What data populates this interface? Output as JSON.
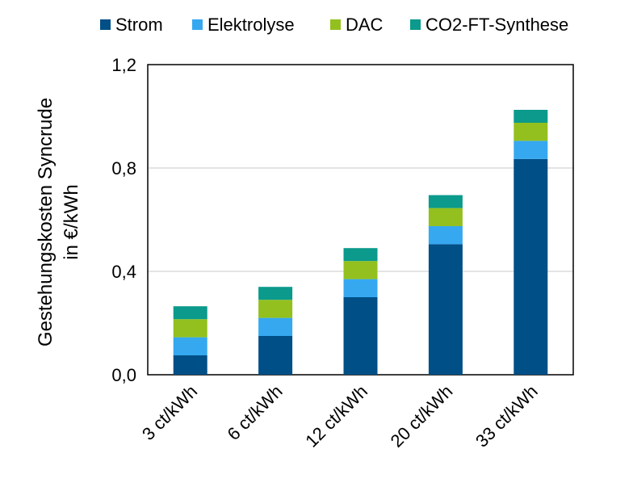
{
  "chart_data": {
    "type": "bar",
    "stacked": true,
    "ylabel_line1": "Gestehungskosten Syncrude",
    "ylabel_line2": "in €/kWh",
    "xlabel": "",
    "ylim": [
      0,
      1.2
    ],
    "yticks": [
      "0,0",
      "0,4",
      "0,8",
      "1,2"
    ],
    "ytick_values": [
      0,
      0.4,
      0.8,
      1.2
    ],
    "grid": true,
    "legend_position": "top",
    "categories": [
      "3 ct/kWh",
      "6 ct/kWh",
      "12 ct/kWh",
      "20 ct/kWh",
      "33 ct/kWh"
    ],
    "series": [
      {
        "name": "Strom",
        "color": "#004f86",
        "values": [
          0.075,
          0.15,
          0.3,
          0.505,
          0.835
        ]
      },
      {
        "name": "Elektrolyse",
        "color": "#35a8f0",
        "values": [
          0.07,
          0.07,
          0.07,
          0.07,
          0.07
        ]
      },
      {
        "name": "DAC",
        "color": "#93c01f",
        "values": [
          0.07,
          0.07,
          0.07,
          0.07,
          0.07
        ]
      },
      {
        "name": "CO2-FT-Synthese",
        "color": "#0b9a8b",
        "values": [
          0.05,
          0.05,
          0.05,
          0.05,
          0.05
        ]
      }
    ]
  }
}
